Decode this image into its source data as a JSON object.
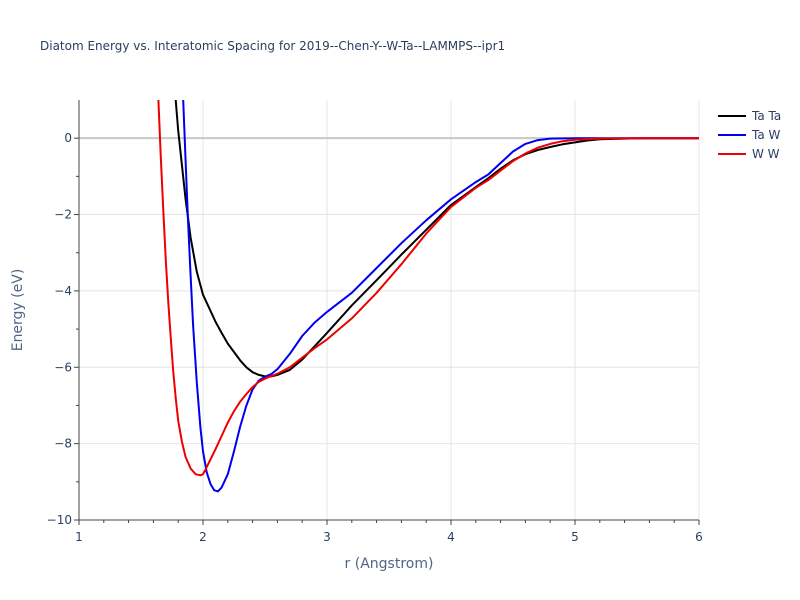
{
  "chart_data": {
    "type": "line",
    "title": "Diatom Energy vs. Interatomic Spacing for 2019--Chen-Y--W-Ta--LAMMPS--ipr1",
    "xlabel": "r (Angstrom)",
    "ylabel": "Energy (eV)",
    "xlim": [
      1,
      6
    ],
    "ylim": [
      -10,
      1
    ],
    "xticks": [
      1,
      2,
      3,
      4,
      5,
      6
    ],
    "xtick_labels": [
      "1",
      "2",
      "3",
      "4",
      "5",
      "6"
    ],
    "yticks": [
      -10,
      -8,
      -6,
      -4,
      -2,
      0
    ],
    "ytick_labels": [
      "−10",
      "−8",
      "−6",
      "−4",
      "−2",
      "0"
    ],
    "grid": true,
    "legend_position": "top-right",
    "series": [
      {
        "name": "Ta Ta",
        "color": "#000000",
        "x": [
          1.78,
          1.8,
          1.83,
          1.86,
          1.9,
          1.95,
          2.0,
          2.05,
          2.1,
          2.15,
          2.2,
          2.25,
          2.3,
          2.35,
          2.4,
          2.45,
          2.5,
          2.55,
          2.6,
          2.7,
          2.8,
          2.9,
          3.0,
          3.2,
          3.4,
          3.6,
          3.8,
          4.0,
          4.2,
          4.3,
          4.4,
          4.5,
          4.6,
          4.7,
          4.8,
          4.9,
          5.0,
          5.1,
          5.2,
          5.4,
          5.6,
          6.0
        ],
        "y": [
          1.0,
          0.2,
          -0.7,
          -1.6,
          -2.6,
          -3.5,
          -4.1,
          -4.45,
          -4.8,
          -5.1,
          -5.38,
          -5.6,
          -5.82,
          -6.0,
          -6.13,
          -6.2,
          -6.24,
          -6.24,
          -6.2,
          -6.07,
          -5.8,
          -5.45,
          -5.1,
          -4.38,
          -3.72,
          -3.05,
          -2.4,
          -1.75,
          -1.28,
          -1.05,
          -0.8,
          -0.58,
          -0.42,
          -0.31,
          -0.23,
          -0.16,
          -0.11,
          -0.06,
          -0.03,
          -0.01,
          0.0,
          0.0
        ]
      },
      {
        "name": "Ta W",
        "color": "#0000ee",
        "x": [
          1.84,
          1.86,
          1.88,
          1.9,
          1.92,
          1.95,
          1.98,
          2.0,
          2.03,
          2.06,
          2.09,
          2.12,
          2.15,
          2.2,
          2.25,
          2.3,
          2.35,
          2.4,
          2.45,
          2.5,
          2.55,
          2.6,
          2.7,
          2.8,
          2.9,
          3.0,
          3.2,
          3.4,
          3.6,
          3.8,
          4.0,
          4.2,
          4.3,
          4.4,
          4.5,
          4.6,
          4.7,
          4.8,
          5.0,
          5.5,
          6.0
        ],
        "y": [
          1.0,
          -0.6,
          -2.2,
          -3.6,
          -4.9,
          -6.4,
          -7.6,
          -8.2,
          -8.75,
          -9.05,
          -9.22,
          -9.25,
          -9.15,
          -8.8,
          -8.2,
          -7.55,
          -7.0,
          -6.58,
          -6.35,
          -6.25,
          -6.18,
          -6.05,
          -5.65,
          -5.18,
          -4.83,
          -4.55,
          -4.05,
          -3.4,
          -2.75,
          -2.15,
          -1.6,
          -1.15,
          -0.95,
          -0.65,
          -0.35,
          -0.15,
          -0.05,
          -0.01,
          0.0,
          0.0,
          0.0
        ]
      },
      {
        "name": "W W",
        "color": "#ee0000",
        "x": [
          1.64,
          1.66,
          1.68,
          1.7,
          1.72,
          1.74,
          1.76,
          1.78,
          1.8,
          1.83,
          1.86,
          1.9,
          1.94,
          1.98,
          2.0,
          2.02,
          2.05,
          2.1,
          2.15,
          2.2,
          2.25,
          2.3,
          2.35,
          2.4,
          2.45,
          2.5,
          2.55,
          2.6,
          2.7,
          2.8,
          2.9,
          3.0,
          3.2,
          3.4,
          3.6,
          3.8,
          4.0,
          4.2,
          4.3,
          4.4,
          4.5,
          4.6,
          4.7,
          4.8,
          4.9,
          5.0,
          5.2,
          5.5,
          6.0
        ],
        "y": [
          1.0,
          -0.5,
          -1.9,
          -3.2,
          -4.3,
          -5.25,
          -6.1,
          -6.8,
          -7.4,
          -7.95,
          -8.35,
          -8.65,
          -8.8,
          -8.83,
          -8.8,
          -8.68,
          -8.48,
          -8.15,
          -7.8,
          -7.45,
          -7.15,
          -6.9,
          -6.7,
          -6.52,
          -6.38,
          -6.3,
          -6.23,
          -6.17,
          -6.0,
          -5.75,
          -5.5,
          -5.27,
          -4.72,
          -4.05,
          -3.3,
          -2.5,
          -1.8,
          -1.3,
          -1.1,
          -0.85,
          -0.6,
          -0.4,
          -0.25,
          -0.15,
          -0.08,
          -0.04,
          -0.01,
          0.0,
          0.0
        ]
      }
    ]
  }
}
